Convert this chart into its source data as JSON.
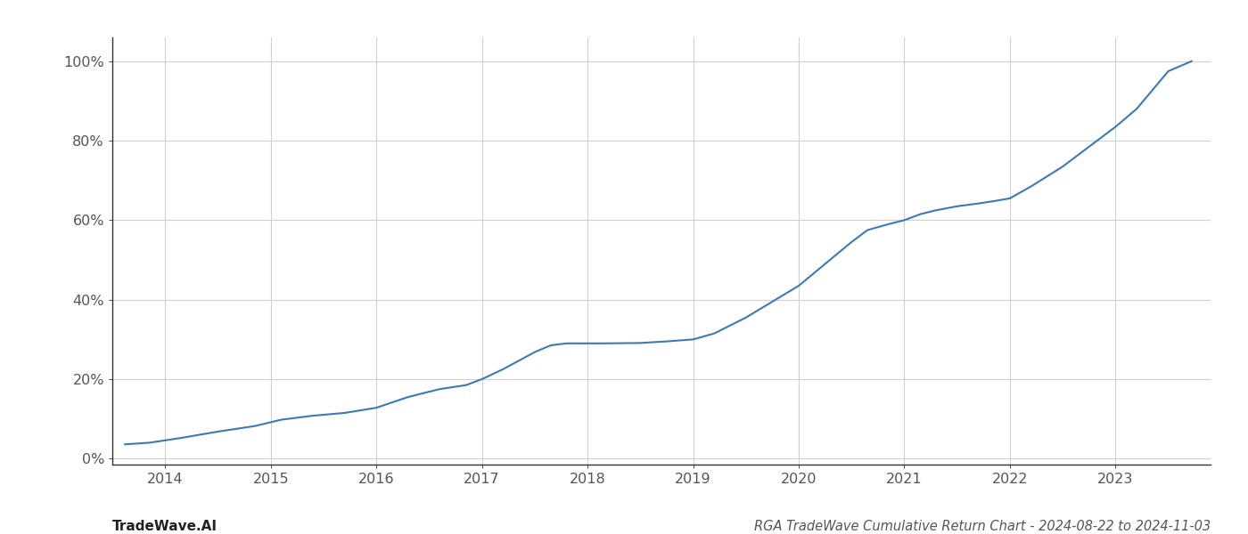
{
  "x_values": [
    2013.62,
    2013.85,
    2014.15,
    2014.5,
    2014.85,
    2015.1,
    2015.4,
    2015.7,
    2016.0,
    2016.3,
    2016.6,
    2016.85,
    2017.0,
    2017.2,
    2017.5,
    2017.65,
    2017.8,
    2018.0,
    2018.15,
    2018.5,
    2018.75,
    2019.0,
    2019.2,
    2019.5,
    2019.75,
    2020.0,
    2020.25,
    2020.5,
    2020.65,
    2020.85,
    2021.0,
    2021.15,
    2021.3,
    2021.5,
    2021.7,
    2021.85,
    2022.0,
    2022.2,
    2022.5,
    2022.75,
    2023.0,
    2023.2,
    2023.5,
    2023.72
  ],
  "y_values": [
    0.036,
    0.04,
    0.052,
    0.068,
    0.082,
    0.098,
    0.108,
    0.115,
    0.128,
    0.155,
    0.175,
    0.185,
    0.2,
    0.225,
    0.268,
    0.285,
    0.29,
    0.29,
    0.29,
    0.291,
    0.295,
    0.3,
    0.315,
    0.355,
    0.395,
    0.435,
    0.49,
    0.545,
    0.575,
    0.59,
    0.6,
    0.615,
    0.625,
    0.635,
    0.642,
    0.648,
    0.655,
    0.685,
    0.735,
    0.785,
    0.835,
    0.88,
    0.975,
    1.0
  ],
  "line_color": "#3d7ab5",
  "line_width": 1.5,
  "title": "RGA TradeWave Cumulative Return Chart - 2024-08-22 to 2024-11-03",
  "watermark": "TradeWave.AI",
  "background_color": "#ffffff",
  "grid_color": "#d0d0d0",
  "ytick_labels": [
    "0%",
    "20%",
    "40%",
    "60%",
    "80%",
    "100%"
  ],
  "ytick_values": [
    0,
    0.2,
    0.4,
    0.6,
    0.8,
    1.0
  ],
  "xtick_labels": [
    "2014",
    "2015",
    "2016",
    "2017",
    "2018",
    "2019",
    "2020",
    "2021",
    "2022",
    "2023"
  ],
  "xtick_values": [
    2014,
    2015,
    2016,
    2017,
    2018,
    2019,
    2020,
    2021,
    2022,
    2023
  ],
  "xlim": [
    2013.5,
    2023.9
  ],
  "ylim": [
    -0.015,
    1.06
  ],
  "title_fontsize": 10.5,
  "watermark_fontsize": 11,
  "tick_fontsize": 11.5,
  "left_spine_color": "#333333",
  "bottom_spine_color": "#333333"
}
